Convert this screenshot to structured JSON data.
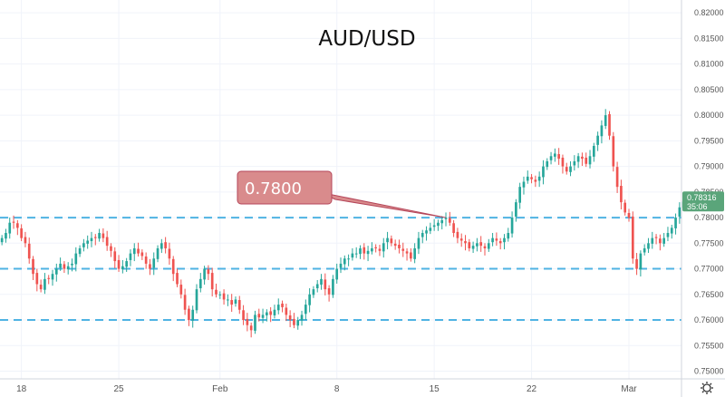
{
  "chart_data": {
    "type": "candlestick",
    "title": "AUD/USD",
    "ylim": [
      0.7485,
      0.8225
    ],
    "y_ticks": [
      "0.82000",
      "0.81500",
      "0.81000",
      "0.80500",
      "0.80000",
      "0.79500",
      "0.79000",
      "0.78500",
      "0.78000",
      "0.77500",
      "0.77000",
      "0.76500",
      "0.76000",
      "0.75500",
      "0.75000"
    ],
    "x_ticks": [
      {
        "label": "18",
        "bar": 5
      },
      {
        "label": "25",
        "bar": 30
      },
      {
        "label": "Feb",
        "bar": 56
      },
      {
        "label": "8",
        "bar": 86
      },
      {
        "label": "15",
        "bar": 111
      },
      {
        "label": "22",
        "bar": 136
      },
      {
        "label": "Mar",
        "bar": 161
      }
    ],
    "bar_count": 175,
    "closes": [
      0.776,
      0.777,
      0.779,
      0.779,
      0.778,
      0.776,
      0.775,
      0.772,
      0.769,
      0.767,
      0.766,
      0.768,
      0.768,
      0.769,
      0.77,
      0.771,
      0.77,
      0.7705,
      0.771,
      0.773,
      0.774,
      0.775,
      0.7755,
      0.776,
      0.776,
      0.777,
      0.776,
      0.7745,
      0.7735,
      0.7715,
      0.77,
      0.7705,
      0.7715,
      0.773,
      0.774,
      0.773,
      0.7725,
      0.771,
      0.77,
      0.772,
      0.774,
      0.775,
      0.774,
      0.772,
      0.769,
      0.767,
      0.765,
      0.762,
      0.76,
      0.762,
      0.766,
      0.768,
      0.77,
      0.769,
      0.766,
      0.765,
      0.765,
      0.764,
      0.764,
      0.763,
      0.764,
      0.762,
      0.76,
      0.759,
      0.758,
      0.761,
      0.7605,
      0.761,
      0.7615,
      0.761,
      0.762,
      0.763,
      0.7625,
      0.761,
      0.76,
      0.759,
      0.76,
      0.761,
      0.763,
      0.765,
      0.766,
      0.767,
      0.768,
      0.766,
      0.765,
      0.768,
      0.77,
      0.771,
      0.772,
      0.772,
      0.773,
      0.773,
      0.774,
      0.773,
      0.7735,
      0.774,
      0.774,
      0.7735,
      0.775,
      0.776,
      0.775,
      0.7745,
      0.774,
      0.7735,
      0.773,
      0.772,
      0.774,
      0.776,
      0.777,
      0.7775,
      0.778,
      0.7785,
      0.779,
      0.7795,
      0.78,
      0.779,
      0.777,
      0.776,
      0.7755,
      0.775,
      0.774,
      0.7745,
      0.775,
      0.7745,
      0.774,
      0.775,
      0.776,
      0.7755,
      0.775,
      0.776,
      0.777,
      0.78,
      0.783,
      0.786,
      0.787,
      0.788,
      0.7875,
      0.787,
      0.788,
      0.79,
      0.791,
      0.792,
      0.7925,
      0.7915,
      0.79,
      0.789,
      0.79,
      0.791,
      0.792,
      0.7915,
      0.7905,
      0.792,
      0.794,
      0.796,
      0.798,
      0.8,
      0.796,
      0.79,
      0.786,
      0.783,
      0.781,
      0.78,
      0.772,
      0.77,
      0.773,
      0.774,
      0.775,
      0.776,
      0.776,
      0.775,
      0.776,
      0.777,
      0.778,
      0.78,
      0.782,
      0.7831
    ],
    "horizontal_lines": [
      0.78,
      0.77,
      0.76
    ],
    "annotation": {
      "text": "0.7800",
      "target_bar": 114,
      "target_value": 0.78
    },
    "last_price": {
      "value": "0.78316",
      "countdown": "35:06"
    },
    "colors": {
      "up": "#26a69a",
      "down": "#ef5350",
      "level": "#4fb3e3",
      "annotation": "#d98b8c",
      "annotation_border": "#b5465a",
      "price_tag": "#5aa57a"
    }
  },
  "toolbar": {
    "settings_icon": "gear-icon"
  }
}
